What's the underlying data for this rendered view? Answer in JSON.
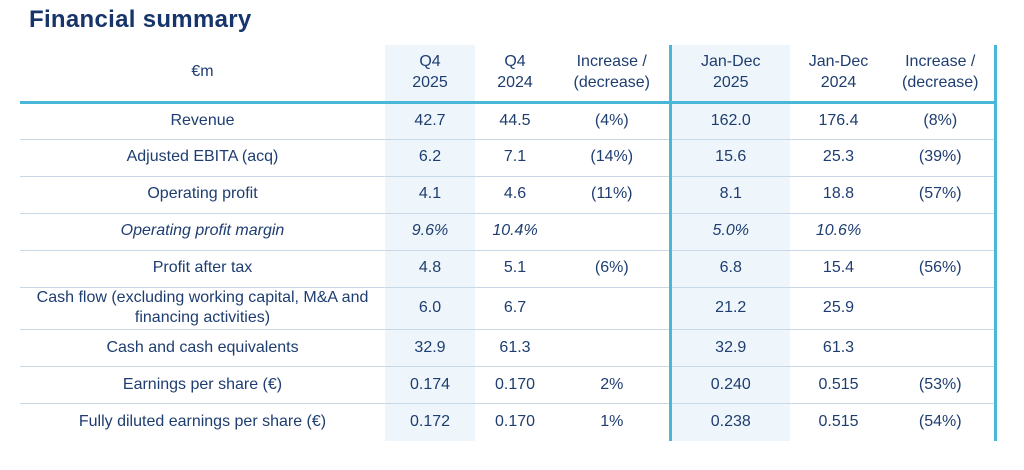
{
  "page": {
    "title": "Financial summary"
  },
  "colors": {
    "title_text": "#17356b",
    "body_text": "#1e3d70",
    "accent_teal": "#49b7d7",
    "highlight_column_bg": "#eef6fb",
    "row_separator": "#c9d8e6"
  },
  "table": {
    "unit_label": "€m",
    "columns": [
      {
        "id": "q4_2025",
        "line1": "Q4",
        "line2": "2025",
        "highlight": true,
        "separator_left": false
      },
      {
        "id": "q4_2024",
        "line1": "Q4",
        "line2": "2024",
        "highlight": false,
        "separator_left": false
      },
      {
        "id": "inc_q4",
        "line1": "Increase /",
        "line2": "(decrease)",
        "highlight": false,
        "separator_left": false
      },
      {
        "id": "jd_2025",
        "line1": "Jan-Dec",
        "line2": "2025",
        "highlight": true,
        "separator_left": true
      },
      {
        "id": "jd_2024",
        "line1": "Jan-Dec",
        "line2": "2024",
        "highlight": false,
        "separator_left": false
      },
      {
        "id": "inc_jd",
        "line1": "Increase /",
        "line2": "(decrease)",
        "highlight": false,
        "separator_left": false
      }
    ],
    "rows": [
      {
        "label": "Revenue",
        "italic": false,
        "values": [
          "42.7",
          "44.5",
          "(4%)",
          "162.0",
          "176.4",
          "(8%)"
        ]
      },
      {
        "label": "Adjusted EBITA (acq)",
        "italic": false,
        "values": [
          "6.2",
          "7.1",
          "(14%)",
          "15.6",
          "25.3",
          "(39%)"
        ]
      },
      {
        "label": "Operating profit",
        "italic": false,
        "values": [
          "4.1",
          "4.6",
          "(11%)",
          "8.1",
          "18.8",
          "(57%)"
        ]
      },
      {
        "label": "Operating profit margin",
        "italic": true,
        "values": [
          "9.6%",
          "10.4%",
          "",
          "5.0%",
          "10.6%",
          ""
        ]
      },
      {
        "label": "Profit after tax",
        "italic": false,
        "values": [
          "4.8",
          "5.1",
          "(6%)",
          "6.8",
          "15.4",
          "(56%)"
        ]
      },
      {
        "label": "Cash flow (excluding working capital, M&A and financing activities)",
        "italic": false,
        "values": [
          "6.0",
          "6.7",
          "",
          "21.2",
          "25.9",
          ""
        ]
      },
      {
        "label": "Cash and cash equivalents",
        "italic": false,
        "values": [
          "32.9",
          "61.3",
          "",
          "32.9",
          "61.3",
          ""
        ]
      },
      {
        "label": "Earnings per share (€)",
        "italic": false,
        "values": [
          "0.174",
          "0.170",
          "2%",
          "0.240",
          "0.515",
          "(53%)"
        ]
      },
      {
        "label": "Fully diluted earnings per share (€)",
        "italic": false,
        "values": [
          "0.172",
          "0.170",
          "1%",
          "0.238",
          "0.515",
          "(54%)"
        ]
      }
    ]
  }
}
